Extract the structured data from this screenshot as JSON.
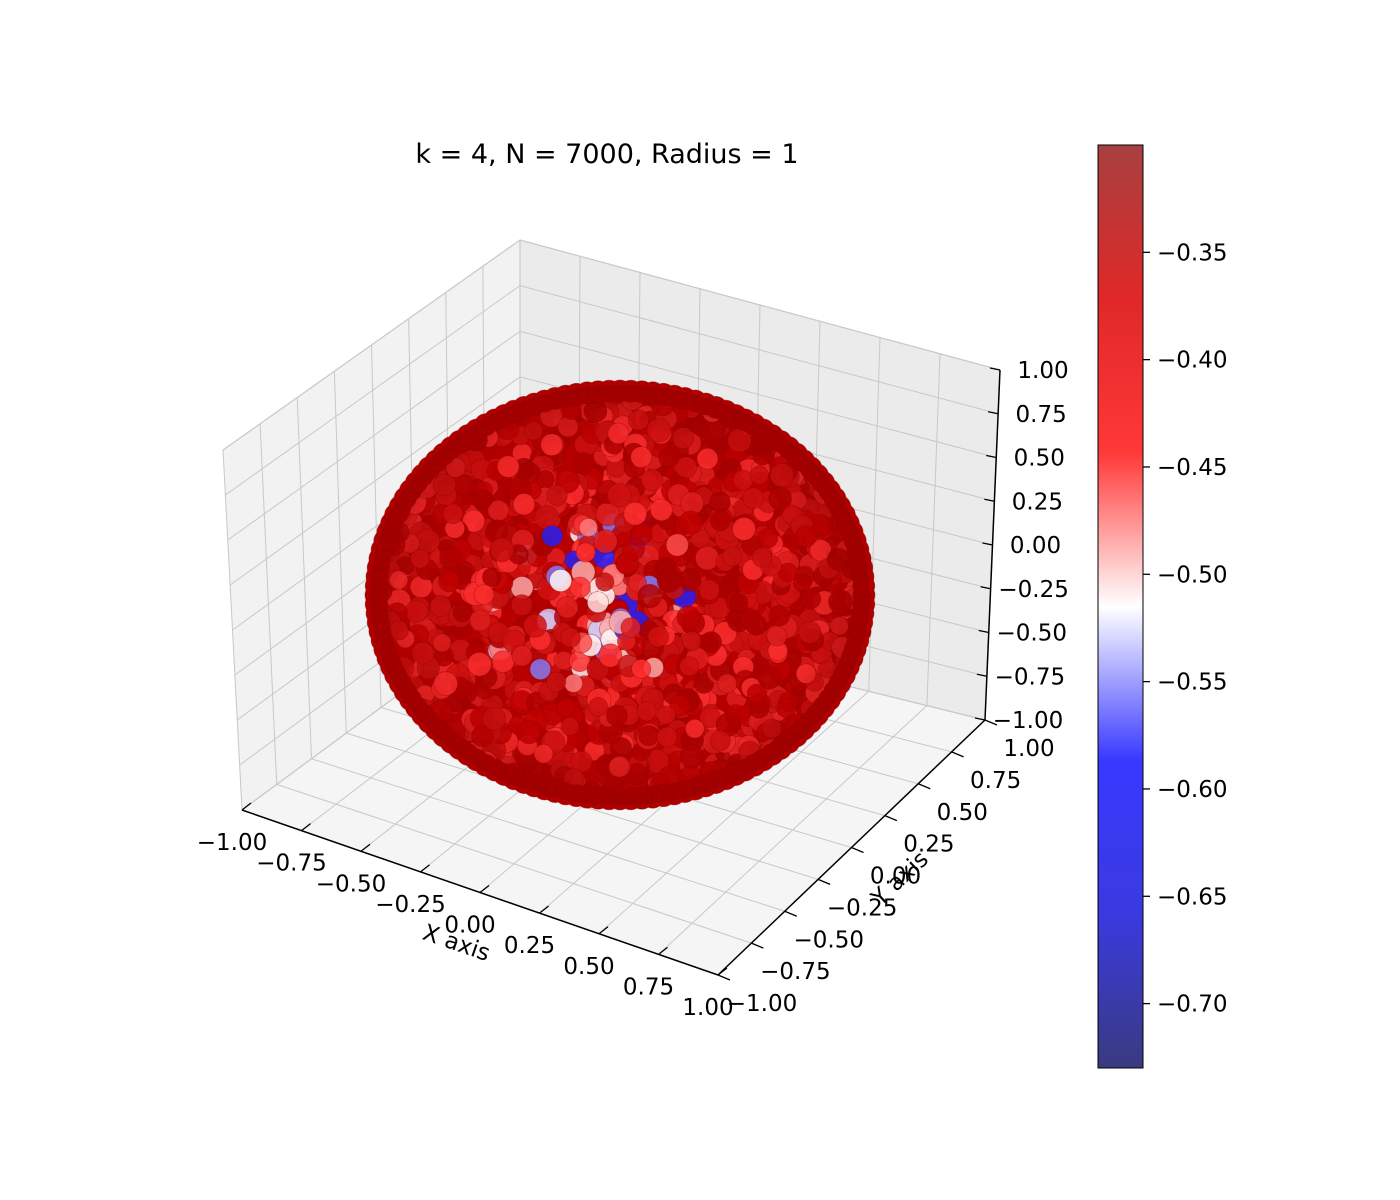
{
  "chart_data": {
    "type": "scatter",
    "projection": "3d",
    "title": "k = 4, N = 7000, Radius = 1",
    "xlabel": "X axis",
    "ylabel": "Y axis",
    "zlabel": "",
    "xlim": [
      -1.0,
      1.0
    ],
    "ylim": [
      -1.0,
      1.0
    ],
    "zlim": [
      -1.0,
      1.0
    ],
    "x_ticks": [
      "−1.00",
      "−0.75",
      "−0.50",
      "−0.25",
      "0.00",
      "0.25",
      "0.50",
      "0.75",
      "1.00"
    ],
    "y_ticks": [
      "−1.00",
      "−0.75",
      "−0.50",
      "−0.25",
      "0.00",
      "0.25",
      "0.50",
      "0.75",
      "1.00"
    ],
    "z_ticks": [
      "−1.00",
      "−0.75",
      "−0.50",
      "−0.25",
      "0.00",
      "0.25",
      "0.50",
      "0.75",
      "1.00"
    ],
    "grid": true,
    "colormap": "seismic",
    "colorbar": {
      "range": [
        -0.73,
        -0.3
      ],
      "ticks": [
        -0.7,
        -0.65,
        -0.6,
        -0.55,
        -0.5,
        -0.45,
        -0.4,
        -0.35
      ],
      "tick_labels": [
        "−0.70",
        "−0.65",
        "−0.60",
        "−0.55",
        "−0.50",
        "−0.45",
        "−0.40",
        "−0.35"
      ],
      "stops": [
        "#3a3a80",
        "#3a3ae0",
        "#3838ff",
        "#ffffff",
        "#ff3838",
        "#e02828",
        "#a84040"
      ]
    },
    "points": {
      "count": 7000,
      "shape": "sphere",
      "radius": 1,
      "values_range": [
        -0.73,
        -0.3
      ],
      "dominant_color": "#c00000"
    }
  }
}
